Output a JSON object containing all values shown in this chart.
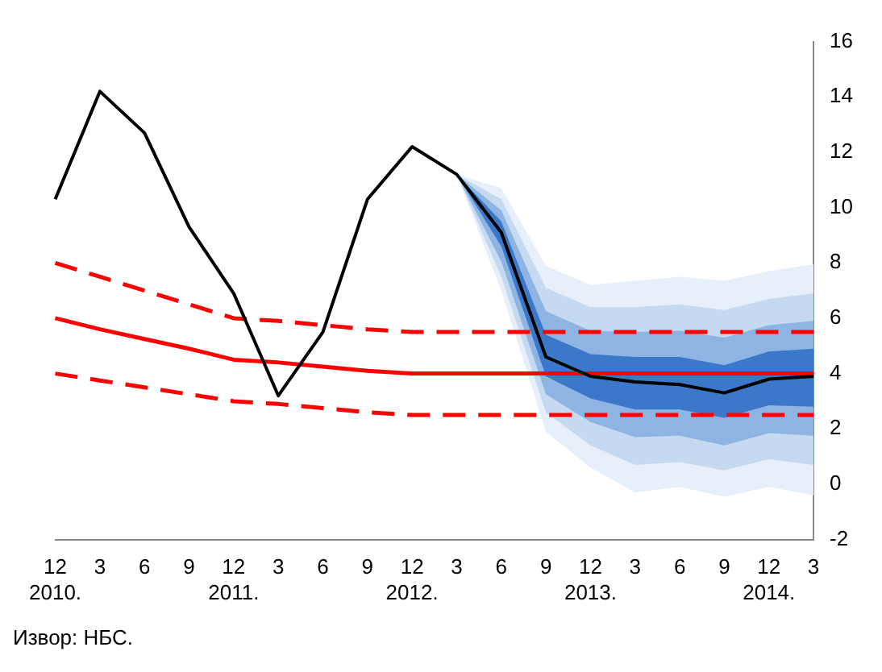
{
  "chart_data": {
    "type": "line",
    "categories": [
      "12 2010.",
      "3",
      "6",
      "9",
      "12 2011.",
      "3",
      "6",
      "9",
      "12 2012.",
      "3",
      "6",
      "9",
      "12 2013.",
      "3",
      "6",
      "9",
      "12 2014.",
      "3"
    ],
    "series": [
      {
        "type": "area",
        "color": "#e6effa",
        "values": [
          null,
          null,
          null,
          null,
          null,
          null,
          null,
          null,
          null,
          null,
          null,
          null,
          null,
          null,
          null,
          null,
          null,
          null
        ],
        "lower": [
          null,
          null,
          null,
          null,
          null,
          null,
          null,
          null,
          null,
          11.2,
          7.0,
          1.9,
          0.6,
          -0.3,
          -0.1,
          -0.45,
          -0.1,
          -0.4
        ],
        "upper": [
          null,
          null,
          null,
          null,
          null,
          null,
          null,
          null,
          null,
          11.2,
          10.7,
          7.9,
          7.2,
          7.35,
          7.5,
          7.35,
          7.7,
          7.95
        ]
      },
      {
        "type": "area",
        "color": "#c5d9f1",
        "values": [
          null,
          null,
          null,
          null,
          null,
          null,
          null,
          null,
          null,
          null,
          null,
          null,
          null,
          null,
          null,
          null,
          null,
          null
        ],
        "lower": [
          null,
          null,
          null,
          null,
          null,
          null,
          null,
          null,
          null,
          11.2,
          7.5,
          2.6,
          1.4,
          0.7,
          0.8,
          0.5,
          0.9,
          0.7
        ],
        "upper": [
          null,
          null,
          null,
          null,
          null,
          null,
          null,
          null,
          null,
          11.2,
          10.3,
          7.1,
          6.4,
          6.4,
          6.5,
          6.3,
          6.7,
          6.9
        ]
      },
      {
        "type": "area",
        "color": "#8db4e2",
        "values": [
          null,
          null,
          null,
          null,
          null,
          null,
          null,
          null,
          null,
          null,
          null,
          null,
          null,
          null,
          null,
          null,
          null,
          null
        ],
        "lower": [
          null,
          null,
          null,
          null,
          null,
          null,
          null,
          null,
          null,
          11.2,
          8.05,
          3.25,
          2.25,
          1.7,
          1.75,
          1.4,
          1.85,
          1.75
        ],
        "upper": [
          null,
          null,
          null,
          null,
          null,
          null,
          null,
          null,
          null,
          11.2,
          9.9,
          6.25,
          5.55,
          5.5,
          5.55,
          5.3,
          5.75,
          5.9
        ]
      },
      {
        "type": "area",
        "color": "#3b78c9",
        "values": [
          null,
          null,
          null,
          null,
          null,
          null,
          null,
          null,
          null,
          null,
          null,
          null,
          null,
          null,
          null,
          null,
          null,
          null
        ],
        "lower": [
          null,
          null,
          null,
          null,
          null,
          null,
          null,
          null,
          null,
          11.2,
          8.6,
          3.9,
          3.1,
          2.7,
          2.7,
          2.4,
          2.85,
          2.8
        ],
        "upper": [
          null,
          null,
          null,
          null,
          null,
          null,
          null,
          null,
          null,
          11.2,
          9.5,
          5.4,
          4.7,
          4.6,
          4.6,
          4.3,
          4.8,
          4.9
        ]
      },
      {
        "type": "line",
        "color": "#ff0000",
        "line_style": "dashed",
        "values": [
          8,
          7.5,
          7,
          6.5,
          6,
          5.9,
          5.75,
          5.6,
          5.5,
          5.5,
          5.5,
          5.5,
          5.5,
          5.5,
          5.5,
          5.5,
          5.5,
          5.5
        ]
      },
      {
        "type": "line",
        "color": "#ff0000",
        "line_style": "dashed",
        "values": [
          4,
          3.75,
          3.5,
          3.25,
          3,
          2.9,
          2.75,
          2.6,
          2.5,
          2.5,
          2.5,
          2.5,
          2.5,
          2.5,
          2.5,
          2.5,
          2.5,
          2.5
        ]
      },
      {
        "type": "line",
        "color": "#ff0000",
        "line_style": "solid",
        "values": [
          6,
          5.6,
          5.25,
          4.9,
          4.5,
          4.4,
          4.25,
          4.1,
          4,
          4,
          4,
          4,
          4,
          4,
          4,
          4,
          4,
          4
        ]
      },
      {
        "type": "line",
        "color": "#000000",
        "line_style": "solid",
        "values": [
          10.3,
          14.2,
          12.7,
          9.3,
          6.9,
          3.2,
          5.5,
          10.3,
          12.2,
          11.2,
          9.1,
          4.6,
          3.9,
          3.7,
          3.6,
          3.3,
          3.8,
          3.9
        ]
      }
    ],
    "ylim": [
      -2,
      16
    ],
    "yticks": [
      -2,
      0,
      2,
      4,
      6,
      8,
      10,
      12,
      14,
      16
    ],
    "grid": false,
    "legend": false,
    "marker": "none",
    "annotations": [
      "Извор: НБС."
    ]
  }
}
